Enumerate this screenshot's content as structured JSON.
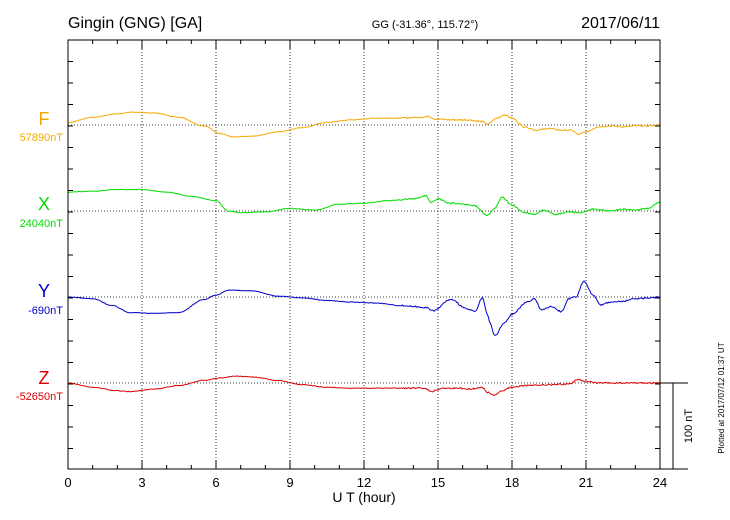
{
  "header": {
    "station": "Gingin (GNG)  [GA]",
    "coords": "GG (-31.36°, 115.72°)",
    "date": "2017/06/11"
  },
  "footer": {
    "plotted": "Plotted at 2017/07/12 01:37 UT"
  },
  "chart_data": {
    "type": "line",
    "title": "Gingin (GNG)  [GA]",
    "xlabel": "U T (hour)",
    "ylabel": "",
    "xlim": [
      0,
      24
    ],
    "x_ticks": [
      "0",
      "3",
      "6",
      "9",
      "12",
      "15",
      "18",
      "21",
      "24"
    ],
    "scale_bar": "100 nT",
    "scale_bar_value_nT": 100,
    "grid": true,
    "colors": {
      "F": "#f5a800",
      "X": "#00dd00",
      "Y": "#0000cc",
      "Z": "#dd0000",
      "axis": "#000000"
    },
    "series": [
      {
        "name": "F",
        "label": "F",
        "baseline_label": "57890nT",
        "baseline_nT": 57890,
        "color_key": "F",
        "x": [
          0,
          1,
          2,
          2.6,
          3.5,
          4.5,
          5.5,
          6.2,
          6.7,
          7.5,
          8.5,
          9.5,
          10.5,
          11.5,
          12.5,
          13.5,
          14.3,
          14.6,
          14.9,
          15.5,
          16.2,
          16.8,
          17.0,
          17.4,
          17.7,
          18.0,
          18.5,
          19.0,
          19.5,
          20.0,
          20.4,
          20.7,
          21.0,
          21.5,
          22.0,
          22.5,
          23.0,
          23.5,
          24.0
        ],
        "values": [
          3,
          9,
          13,
          15,
          14,
          9,
          -1,
          -10,
          -14,
          -13,
          -8,
          -3,
          3,
          6,
          8,
          8,
          9,
          10,
          7,
          6,
          6,
          4,
          1,
          8,
          12,
          8,
          -2,
          -6,
          -4,
          -6,
          -6,
          -11,
          -8,
          -2,
          -1,
          -2,
          -1,
          -1,
          0
        ]
      },
      {
        "name": "X",
        "label": "X",
        "baseline_label": "24040nT",
        "baseline_nT": 24040,
        "color_key": "X",
        "x": [
          0,
          1,
          2,
          3,
          4,
          5,
          6,
          6.5,
          7,
          8,
          9,
          10,
          11,
          12,
          13,
          14,
          14.5,
          14.7,
          15.0,
          15.5,
          16,
          16.5,
          17.0,
          17.3,
          17.6,
          18.0,
          18.5,
          18.9,
          19.3,
          19.8,
          20.3,
          20.8,
          21.3,
          22,
          22.5,
          23,
          23.5,
          24.0
        ],
        "values": [
          22,
          23,
          25,
          25,
          22,
          17,
          12,
          0,
          -2,
          -1,
          3,
          1,
          8,
          9,
          12,
          14,
          18,
          10,
          14,
          9,
          8,
          6,
          -5,
          3,
          16,
          7,
          -2,
          -4,
          1,
          -4,
          -1,
          -2,
          2,
          0,
          2,
          1,
          3,
          10
        ]
      },
      {
        "name": "Y",
        "label": "Y",
        "baseline_label": "-690nT",
        "baseline_nT": -690,
        "color_key": "Y",
        "x": [
          0,
          1,
          1.8,
          2.5,
          3.5,
          4.5,
          5.5,
          6,
          6.5,
          7.5,
          8.5,
          9.5,
          10.5,
          11.5,
          12.5,
          13.5,
          14.5,
          14.8,
          15.5,
          16.2,
          16.5,
          16.8,
          17.0,
          17.1,
          17.3,
          17.7,
          18.0,
          18.6,
          18.9,
          19.2,
          19.6,
          20.0,
          20.3,
          20.6,
          20.9,
          21.3,
          21.6,
          22.0,
          22.5,
          23.0,
          23.5,
          24.0
        ],
        "values": [
          0,
          -2,
          -10,
          -18,
          -19,
          -18,
          -3,
          2,
          8,
          7,
          1,
          -1,
          -4,
          -6,
          -7,
          -10,
          -12,
          -16,
          -3,
          -14,
          -17,
          -1,
          -20,
          -30,
          -45,
          -30,
          -20,
          -6,
          -2,
          -15,
          -11,
          -17,
          -2,
          0,
          18,
          2,
          -9,
          -6,
          -5,
          -2,
          -1,
          0
        ]
      },
      {
        "name": "Z",
        "label": "Z",
        "baseline_label": "-52650nT",
        "baseline_nT": -52650,
        "color_key": "Z",
        "x": [
          0,
          1,
          2,
          2.5,
          3.5,
          4.5,
          5.5,
          6.2,
          6.8,
          7.5,
          8.5,
          9.5,
          10.5,
          11.5,
          12.5,
          13.5,
          14.5,
          14.7,
          15.2,
          15.8,
          16.3,
          16.8,
          17.0,
          17.3,
          17.6,
          18.0,
          18.5,
          19.5,
          20.3,
          20.7,
          21.0,
          21.5,
          22.0,
          22.5,
          23.0,
          23.5,
          24.0
        ],
        "values": [
          0,
          -5,
          -9,
          -10,
          -7,
          -3,
          3,
          6,
          8,
          7,
          3,
          -2,
          -5,
          -6,
          -6,
          -6,
          -6,
          -10,
          -6,
          -6,
          -7,
          -5,
          -11,
          -14,
          -9,
          -5,
          -3,
          -2,
          -1,
          4,
          2,
          0,
          0,
          0,
          0,
          0,
          0
        ]
      }
    ]
  }
}
